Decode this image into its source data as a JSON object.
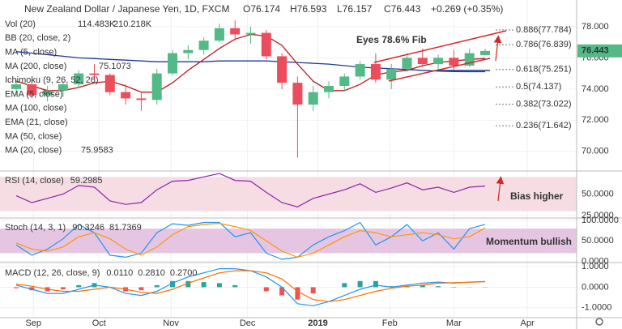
{
  "chart_data": [
    {
      "type": "candlestick",
      "title": "New Zealand Dollar / Japanese Yen, 1D, FXCM",
      "quote": [
        {
          "value": 76.174,
          "label": "O76.174"
        },
        {
          "value": 76.593,
          "label": "H76.593"
        },
        {
          "value": 76.157,
          "label": "L76.157"
        },
        {
          "value": 76.443,
          "label": "C76.443"
        }
      ],
      "change": {
        "value": 0.269,
        "label": "+0.269 (+0.35%)"
      },
      "last_price": 76.443,
      "open": [
        74.0,
        74.3,
        73.6,
        73.9,
        74.3,
        75.0,
        74.9,
        73.8,
        73.4,
        73.3,
        75.0,
        76.3,
        76.5,
        77.1,
        77.9,
        77.5,
        77.6,
        76.1,
        74.4,
        73.0,
        73.8,
        74.2,
        74.8,
        75.6,
        74.6,
        75.3,
        76.0,
        75.6,
        76.0,
        75.5,
        76.174
      ],
      "high": [
        74.6,
        74.6,
        74.2,
        74.5,
        75.2,
        75.6,
        75.0,
        74.3,
        73.8,
        75.3,
        76.5,
        76.8,
        77.3,
        78.2,
        78.4,
        78.0,
        77.8,
        76.3,
        74.8,
        74.2,
        74.5,
        75.0,
        75.8,
        76.3,
        75.6,
        76.3,
        76.6,
        76.2,
        76.5,
        76.6,
        76.593
      ],
      "low": [
        73.6,
        73.4,
        73.2,
        73.5,
        74.1,
        74.6,
        73.6,
        73.0,
        72.6,
        73.0,
        74.9,
        75.9,
        76.2,
        77.0,
        77.1,
        76.9,
        75.9,
        74.0,
        69.6,
        72.6,
        73.4,
        73.9,
        74.6,
        74.4,
        74.0,
        75.1,
        75.4,
        75.1,
        75.2,
        75.4,
        76.157
      ],
      "close": [
        74.3,
        73.6,
        73.9,
        74.3,
        75.0,
        74.9,
        73.8,
        73.4,
        73.3,
        75.0,
        76.3,
        76.5,
        77.1,
        77.9,
        77.5,
        77.6,
        76.1,
        74.4,
        73.0,
        73.8,
        74.2,
        74.8,
        75.6,
        74.6,
        75.3,
        76.0,
        75.6,
        76.0,
        75.5,
        76.3,
        76.443
      ],
      "up_color": "#53b987",
      "down_color": "#eb4d5c",
      "series": [
        {
          "name": "MA (200, close)",
          "color": "#1f3a93",
          "values": [
            76.4,
            76.3,
            76.2,
            76.1,
            76.0,
            75.95,
            75.9,
            75.85,
            75.8,
            75.75,
            75.75,
            75.75,
            75.75,
            75.8,
            75.8,
            75.8,
            75.8,
            75.75,
            75.7,
            75.65,
            75.6,
            75.5,
            75.4,
            75.35,
            75.3,
            75.25,
            75.2,
            75.15,
            75.12,
            75.11,
            75.1073
          ]
        },
        {
          "name": "MA (20, close)",
          "color": "#b71c1c",
          "values": [
            74.5,
            74.2,
            73.9,
            73.9,
            74.1,
            74.4,
            74.5,
            74.2,
            73.8,
            73.8,
            74.4,
            75.2,
            75.9,
            76.6,
            77.2,
            77.5,
            77.4,
            76.8,
            75.6,
            74.5,
            73.9,
            73.9,
            74.3,
            74.9,
            75.1,
            75.2,
            75.5,
            75.7,
            75.8,
            75.9,
            75.9583
          ]
        }
      ],
      "volume": {
        "name": "Vol (20)",
        "current": {
          "value": 114483,
          "label": "114.483K"
        },
        "average": {
          "value": 210218,
          "label": "210.218K"
        }
      },
      "indicators": [
        "BB (20, close, 2)",
        "MA (5, close)",
        "Ichimoku (9, 26, 52, 26)",
        "EMA (5, close)",
        "MA (100, close)",
        "EMA (21, close)",
        "MA (50, close)"
      ],
      "fib_levels": [
        {
          "value": 77.784,
          "label": "0.886(77.784)"
        },
        {
          "value": 76.839,
          "label": "0.786(76.839)"
        },
        {
          "value": 75.251,
          "label": "0.618(75.251)"
        },
        {
          "value": 74.137,
          "label": "0.5(74.137)"
        },
        {
          "value": 73.022,
          "label": "0.382(73.022)"
        },
        {
          "value": 71.642,
          "label": "0.236(71.642)"
        }
      ],
      "annotation": "Eyes 78.6% Fib",
      "ylim": [
        68.9,
        79.5
      ],
      "yticks": [
        {
          "value": 70,
          "label": "70.000"
        },
        {
          "value": 72,
          "label": "72.000"
        },
        {
          "value": 74,
          "label": "74.000"
        },
        {
          "value": 76,
          "label": "76.000"
        },
        {
          "value": 78,
          "label": "78.000"
        }
      ],
      "xticks": [
        {
          "value": 1.1,
          "label": "Sep"
        },
        {
          "value": 5.3,
          "label": "Oct"
        },
        {
          "value": 9.9,
          "label": "Nov"
        },
        {
          "value": 14.8,
          "label": "Dec"
        },
        {
          "value": 19.3,
          "label": "2019"
        },
        {
          "value": 23.9,
          "label": "Feb"
        },
        {
          "value": 28,
          "label": "Mar"
        },
        {
          "value": 32.7,
          "label": "Apr"
        }
      ],
      "grid": true
    },
    {
      "type": "oscillator",
      "title": "RSI (14, close)",
      "series": [
        {
          "color": "#8e24aa",
          "values": [
            48,
            40,
            45,
            50,
            60,
            58,
            42,
            38,
            40,
            55,
            65,
            66,
            70,
            74,
            66,
            65,
            52,
            40,
            35,
            45,
            50,
            55,
            62,
            52,
            57,
            63,
            55,
            58,
            52,
            58,
            59.2985
          ]
        }
      ],
      "band": [
        30,
        70
      ],
      "band_color": "#f5dde3",
      "annotation": "Bias higher",
      "ylim": [
        23,
        76
      ],
      "yticks": [
        {
          "value": 25,
          "label": "25.0000"
        },
        {
          "value": 50,
          "label": "50.0000"
        }
      ]
    },
    {
      "type": "oscillator",
      "title": "Stoch (14, 3, 1)",
      "series": [
        {
          "color": "#2196f3",
          "values": [
            40,
            15,
            30,
            55,
            90,
            70,
            15,
            10,
            20,
            70,
            92,
            88,
            95,
            95,
            60,
            70,
            20,
            5,
            10,
            40,
            60,
            75,
            95,
            40,
            60,
            90,
            50,
            70,
            30,
            80,
            90.3246
          ]
        },
        {
          "color": "#ff9800",
          "values": [
            45,
            30,
            25,
            35,
            60,
            70,
            55,
            30,
            15,
            35,
            65,
            85,
            90,
            93,
            85,
            75,
            50,
            25,
            10,
            20,
            40,
            60,
            75,
            70,
            60,
            65,
            70,
            65,
            55,
            60,
            81.7369
          ]
        }
      ],
      "band": [
        20,
        80
      ],
      "band_color": "#e6c5e3",
      "annotation": "Momentum bullish",
      "ylim": [
        -1,
        104
      ],
      "yticks": [
        {
          "value": 0,
          "label": "0.0000"
        },
        {
          "value": 50,
          "label": "50.0000"
        },
        {
          "value": 100,
          "label": "100.0000"
        }
      ]
    },
    {
      "type": "macd",
      "title": "MACD (12, 26, close, 9)",
      "histogram": {
        "up_color": "#26a69a",
        "down_color": "#ef5350",
        "values": [
          -0.05,
          -0.15,
          -0.2,
          -0.1,
          0.1,
          0.2,
          0,
          -0.2,
          -0.15,
          0.1,
          0.3,
          0.3,
          0.25,
          0.2,
          0.1,
          0,
          -0.2,
          -0.4,
          -0.6,
          -0.3,
          0,
          0.2,
          0.3,
          0.3,
          0.05,
          0.05,
          0.1,
          0.05,
          -0.02,
          0.01,
          0.011
        ],
        "last_label": "0.0110"
      },
      "series": [
        {
          "color": "#2196f3",
          "values": [
            0.1,
            -0.1,
            -0.3,
            -0.3,
            -0.1,
            0.1,
            0,
            -0.3,
            -0.4,
            -0.2,
            0.2,
            0.5,
            0.7,
            0.9,
            0.9,
            0.8,
            0.5,
            0,
            -0.8,
            -0.9,
            -0.7,
            -0.4,
            -0.1,
            0.1,
            0,
            0.1,
            0.2,
            0.25,
            0.2,
            0.25,
            0.281
          ],
          "last_label": "0.2810"
        },
        {
          "color": "#ff6d00",
          "values": [
            0.15,
            0.05,
            -0.1,
            -0.2,
            -0.2,
            -0.1,
            0,
            -0.1,
            -0.25,
            -0.3,
            -0.1,
            0.2,
            0.45,
            0.7,
            0.8,
            0.8,
            0.7,
            0.4,
            -0.2,
            -0.6,
            -0.7,
            -0.6,
            -0.4,
            -0.2,
            -0.05,
            0.05,
            0.1,
            0.2,
            0.22,
            0.24,
            0.27
          ],
          "last_label": "0.2700"
        }
      ],
      "ylim": [
        -1.44,
        1.12
      ],
      "yticks": [
        {
          "value": -1,
          "label": "-1.0000"
        },
        {
          "value": 0,
          "label": "0.0000"
        },
        {
          "value": 1,
          "label": "1.0000"
        }
      ]
    }
  ]
}
